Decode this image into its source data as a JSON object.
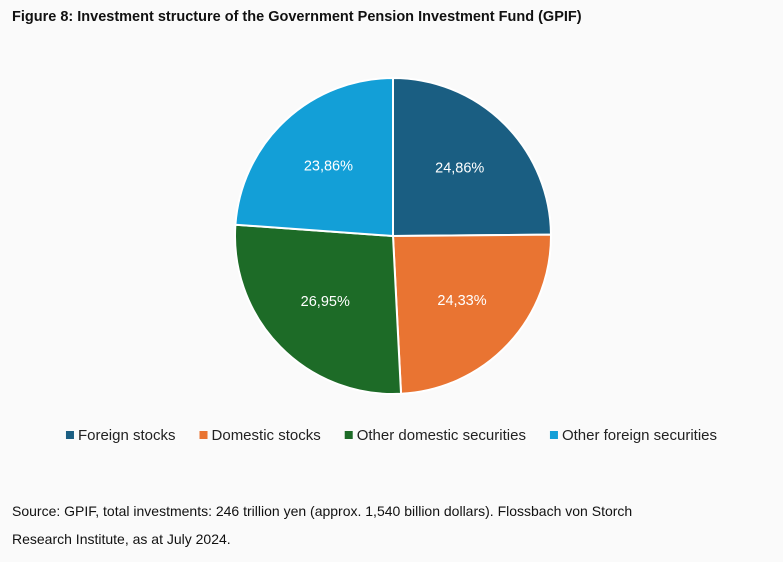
{
  "chart_data": {
    "type": "pie",
    "title": "Figure 8: Investment structure of the Government Pension Investment Fund (GPIF)",
    "categories": [
      "Foreign stocks",
      "Domestic stocks",
      "Other domestic securities",
      "Other foreign securities"
    ],
    "values": [
      24.86,
      24.33,
      26.95,
      23.86
    ],
    "value_labels": [
      "24,86%",
      "24,33%",
      "26,95%",
      "23,86%"
    ],
    "colors": [
      "#1a5e82",
      "#e97432",
      "#1d6b27",
      "#139fd7"
    ],
    "legend": "bottom",
    "source": "Source: GPIF, total investments: 246 trillion yen (approx. 1,540 billion dollars). Flossbach von Storch Research Institute, as at July 2024."
  }
}
